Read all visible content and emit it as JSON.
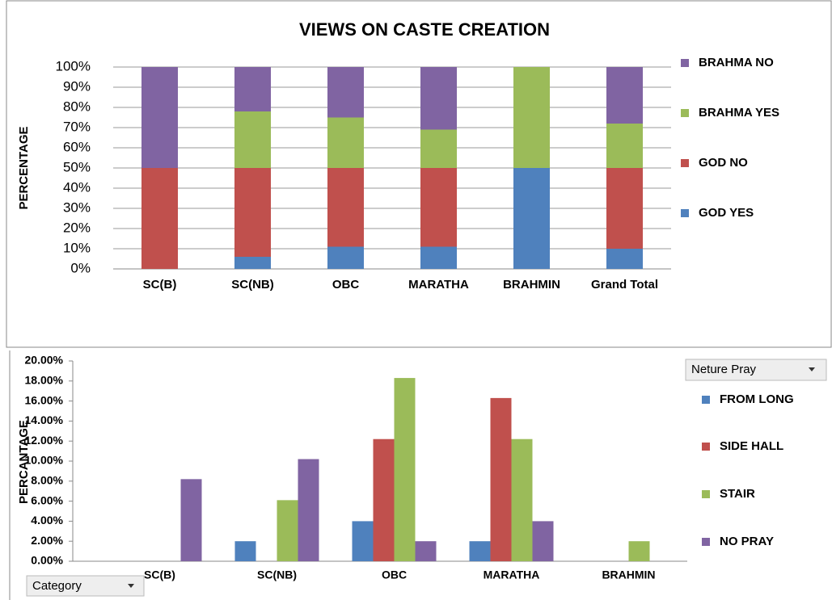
{
  "chart_data": [
    {
      "type": "bar",
      "stacked": true,
      "title": "VIEWS ON CASTE CREATION",
      "ylabel": "PERCENTAGE",
      "categories": [
        "SC(B)",
        "SC(NB)",
        "OBC",
        "MARATHA",
        "BRAHMIN",
        "Grand Total"
      ],
      "series": [
        {
          "name": "GOD YES",
          "color": "#4f81bd",
          "values": [
            0,
            6,
            11,
            11,
            50,
            10
          ]
        },
        {
          "name": "GOD NO",
          "color": "#c0504d",
          "values": [
            50,
            44,
            39,
            39,
            0,
            40
          ]
        },
        {
          "name": "BRAHMA YES",
          "color": "#9bbb59",
          "values": [
            0,
            28,
            25,
            19,
            50,
            22
          ]
        },
        {
          "name": "BRAHMA NO",
          "color": "#8064a2",
          "values": [
            50,
            22,
            25,
            31,
            0,
            28
          ]
        }
      ],
      "ylim": [
        0,
        100
      ],
      "yticks": [
        {
          "value": 0,
          "label": "0%"
        },
        {
          "value": 10,
          "label": "10%"
        },
        {
          "value": 20,
          "label": "20%"
        },
        {
          "value": 30,
          "label": "30%"
        },
        {
          "value": 40,
          "label": "40%"
        },
        {
          "value": 50,
          "label": "50%"
        },
        {
          "value": 60,
          "label": "60%"
        },
        {
          "value": 70,
          "label": "70%"
        },
        {
          "value": 80,
          "label": "80%"
        },
        {
          "value": 90,
          "label": "90%"
        },
        {
          "value": 100,
          "label": "100%"
        }
      ],
      "grid": true,
      "legend": "right"
    },
    {
      "type": "bar",
      "stacked": false,
      "ylabel": "PERCANTAGE",
      "categories": [
        "SC(B)",
        "SC(NB)",
        "OBC",
        "MARATHA",
        "BRAHMIN"
      ],
      "series": [
        {
          "name": "FROM LONG",
          "color": "#4f81bd",
          "values": [
            0,
            2,
            4,
            2,
            0
          ]
        },
        {
          "name": "SIDE HALL",
          "color": "#c0504d",
          "values": [
            0,
            0,
            12.2,
            16.3,
            0
          ]
        },
        {
          "name": "STAIR",
          "color": "#9bbb59",
          "values": [
            0,
            6.1,
            18.3,
            12.2,
            2
          ]
        },
        {
          "name": "NO PRAY",
          "color": "#8064a2",
          "values": [
            8.2,
            10.2,
            2,
            4,
            0
          ]
        }
      ],
      "ylim": [
        0,
        20
      ],
      "yticks": [
        {
          "value": 0,
          "label": "0.00%"
        },
        {
          "value": 2,
          "label": "2.00%"
        },
        {
          "value": 4,
          "label": "4.00%"
        },
        {
          "value": 6,
          "label": "6.00%"
        },
        {
          "value": 8,
          "label": "8.00%"
        },
        {
          "value": 10,
          "label": "10.00%"
        },
        {
          "value": 12,
          "label": "12.00%"
        },
        {
          "value": 14,
          "label": "14.00%"
        },
        {
          "value": 16,
          "label": "16.00%"
        },
        {
          "value": 18,
          "label": "18.00%"
        },
        {
          "value": 20,
          "label": "20.00%"
        }
      ],
      "grid": false,
      "legend": "right",
      "filter_buttons": [
        "Neture Pray",
        "Category"
      ]
    }
  ]
}
